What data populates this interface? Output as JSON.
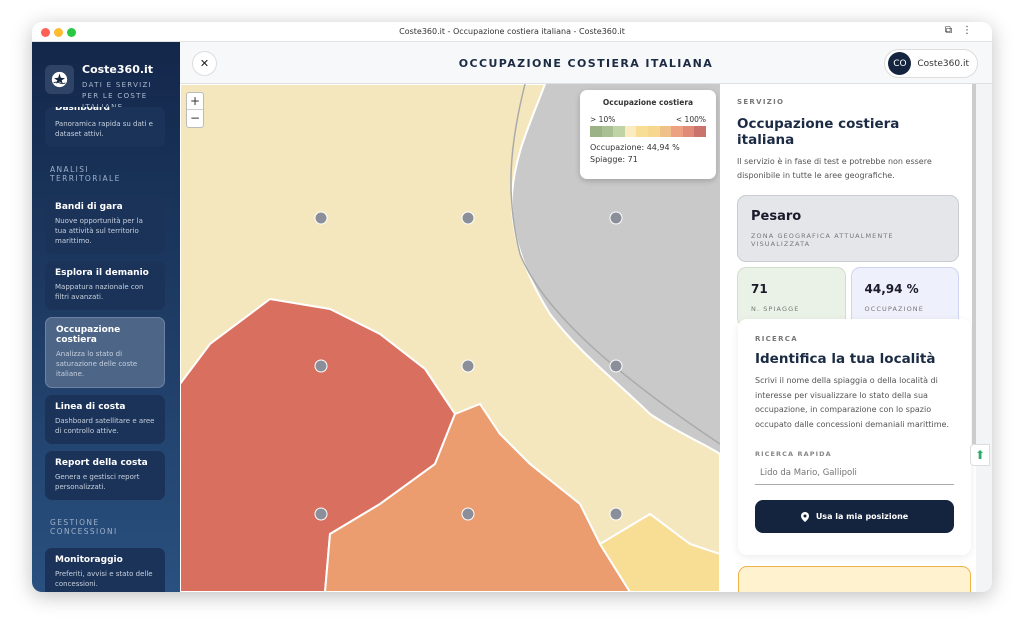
{
  "browser": {
    "title": "Coste360.it - Occupazione costiera italiana - Coste360.it"
  },
  "sidebar": {
    "brand": "Coste360.it",
    "tagline": "DATI E SERVIZI PER LE COSTE ITALIANE",
    "items_top": [
      {
        "label": "Dashboard",
        "desc": "Panoramica rapida su dati e dataset attivi."
      }
    ],
    "section1": "ANALISI TERRITORIALE",
    "items1": [
      {
        "label": "Bandi di gara",
        "desc": "Nuove opportunità per la tua attività sul territorio marittimo."
      },
      {
        "label": "Esplora il demanio",
        "desc": "Mappatura nazionale con filtri avanzati."
      },
      {
        "label": "Occupazione costiera",
        "desc": "Analizza lo stato di saturazione delle coste italiane.",
        "active": true
      },
      {
        "label": "Linea di costa",
        "desc": "Dashboard satellitare e aree di controllo attive."
      },
      {
        "label": "Report della costa",
        "desc": "Genera e gestisci report personalizzati."
      }
    ],
    "section2": "GESTIONE CONCESSIONI",
    "items2": [
      {
        "label": "Monitoraggio",
        "desc": "Preferiti, avvisi e stato delle concessioni."
      }
    ]
  },
  "header": {
    "close_icon": "close-icon",
    "title": "OCCUPAZIONE COSTIERA ITALIANA",
    "user_initials": "CO",
    "user_name": "Coste360.it"
  },
  "map": {
    "zoom_in": "+",
    "zoom_out": "−",
    "legend": {
      "title": "Occupazione costiera",
      "min": "> 10%",
      "max": "< 100%",
      "colors": [
        "#9bb286",
        "#a9bf94",
        "#c0d3a6",
        "#fcebc0",
        "#f8dd95",
        "#f7d78e",
        "#f0c08a",
        "#eca280",
        "#e08a78",
        "#c9736c"
      ],
      "occupazione": "Occupazione: 44,94 %",
      "spiagge": "Spiagge: 71"
    },
    "colors": {
      "land": "#f5e7bd",
      "sea": "#c9c9c9",
      "high": "#d9705f",
      "mid": "#eb9d70"
    }
  },
  "panel": {
    "overline": "SERVIZIO",
    "title": "Occupazione costiera italiana",
    "desc": "Il servizio è in fase di test e potrebbe non essere disponibile in tutte le aree geografiche.",
    "zone": "Pesaro",
    "zone_label": "ZONA GEOGRAFICA ATTUALMENTE VISUALIZZATA",
    "beaches": "71",
    "beaches_label": "N. SPIAGGE",
    "occupancy": "44,94 %",
    "occupancy_label": "OCCUPAZIONE",
    "search": {
      "overline": "RICERCA",
      "title": "Identifica la tua località",
      "desc": "Scrivi il nome della spiaggia o della località di interesse per visualizzare lo stato della sua occupazione, in comparazione con lo spazio occupato dalle concessioni demaniali marittime.",
      "quick_label": "RICERCA RAPIDA",
      "placeholder": "Lido da Mario, Gallipoli",
      "button": "Usa la mia posizione"
    }
  }
}
